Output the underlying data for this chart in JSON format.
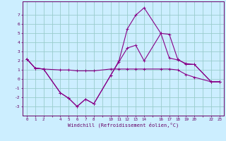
{
  "xlabel": "Windchill (Refroidissement éolien,°C)",
  "background_color": "#cceeff",
  "grid_color": "#99cccc",
  "line_color": "#880088",
  "xtick_labels": [
    "0",
    "1",
    "2",
    "",
    "4",
    "5",
    "6",
    "7",
    "8",
    "",
    "10",
    "11",
    "12",
    "13",
    "14",
    "",
    "16",
    "17",
    "18",
    "19",
    "20",
    "",
    "22",
    "23"
  ],
  "xtick_positions": [
    0,
    1,
    2,
    3,
    4,
    5,
    6,
    7,
    8,
    9,
    10,
    11,
    12,
    13,
    14,
    15,
    16,
    17,
    18,
    19,
    20,
    21,
    22,
    23
  ],
  "ylim": [
    -4,
    8.5
  ],
  "xlim": [
    -0.5,
    23.5
  ],
  "ytick_positions": [
    -3,
    -2,
    -1,
    0,
    1,
    2,
    3,
    4,
    5,
    6,
    7
  ],
  "line1_x": [
    0,
    1,
    2,
    4,
    5,
    6,
    7,
    8,
    10,
    11,
    12,
    13,
    14,
    16,
    17,
    18,
    19,
    20,
    22,
    23
  ],
  "line1_y": [
    2.2,
    1.2,
    1.1,
    1.0,
    1.0,
    0.9,
    0.9,
    0.9,
    1.1,
    1.1,
    1.1,
    1.1,
    1.1,
    1.1,
    1.1,
    1.0,
    0.5,
    0.2,
    -0.3,
    -0.3
  ],
  "line2_x": [
    0,
    1,
    2,
    4,
    5,
    6,
    7,
    8,
    10,
    11,
    12,
    13,
    14,
    16,
    17,
    18,
    19,
    20,
    22,
    23
  ],
  "line2_y": [
    2.2,
    1.2,
    1.1,
    -1.5,
    -2.1,
    -3.0,
    -2.2,
    -2.7,
    0.4,
    1.9,
    3.4,
    3.7,
    2.0,
    5.0,
    4.9,
    2.2,
    1.6,
    1.6,
    -0.3,
    -0.3
  ],
  "line3_x": [
    0,
    1,
    2,
    4,
    5,
    6,
    7,
    8,
    10,
    11,
    12,
    13,
    14,
    16,
    17,
    18,
    19,
    20,
    22,
    23
  ],
  "line3_y": [
    2.2,
    1.2,
    1.1,
    -1.5,
    -2.1,
    -3.0,
    -2.2,
    -2.7,
    0.4,
    2.0,
    5.5,
    7.0,
    7.8,
    5.0,
    2.3,
    2.1,
    1.7,
    1.6,
    -0.3,
    -0.3
  ]
}
